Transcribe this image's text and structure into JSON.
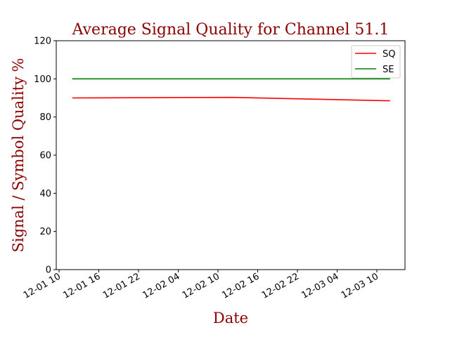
{
  "chart_data": {
    "type": "line",
    "title": "Average Signal Quality for Channel 51.1",
    "xlabel": "Date",
    "ylabel": "Signal / Symbol Quality %",
    "x_ticks": [
      "12-01 10",
      "12-01 16",
      "12-01 22",
      "12-02 04",
      "12-02 10",
      "12-02 16",
      "12-02 22",
      "12-03 04",
      "12-03 10"
    ],
    "ylim": [
      0,
      120
    ],
    "y_ticks": [
      0,
      20,
      40,
      60,
      80,
      100,
      120
    ],
    "grid": false,
    "legend_position": "top-right",
    "series": [
      {
        "name": "SQ",
        "color": "#ff0000",
        "x": [
          "12-01 12:00",
          "12-02 12:00",
          "12-03 12:00"
        ],
        "y": [
          90,
          90.3,
          88.5
        ]
      },
      {
        "name": "SE",
        "color": "#008000",
        "x": [
          "12-01 12:00",
          "12-02 12:00",
          "12-03 12:00"
        ],
        "y": [
          100,
          100,
          100
        ]
      }
    ]
  }
}
